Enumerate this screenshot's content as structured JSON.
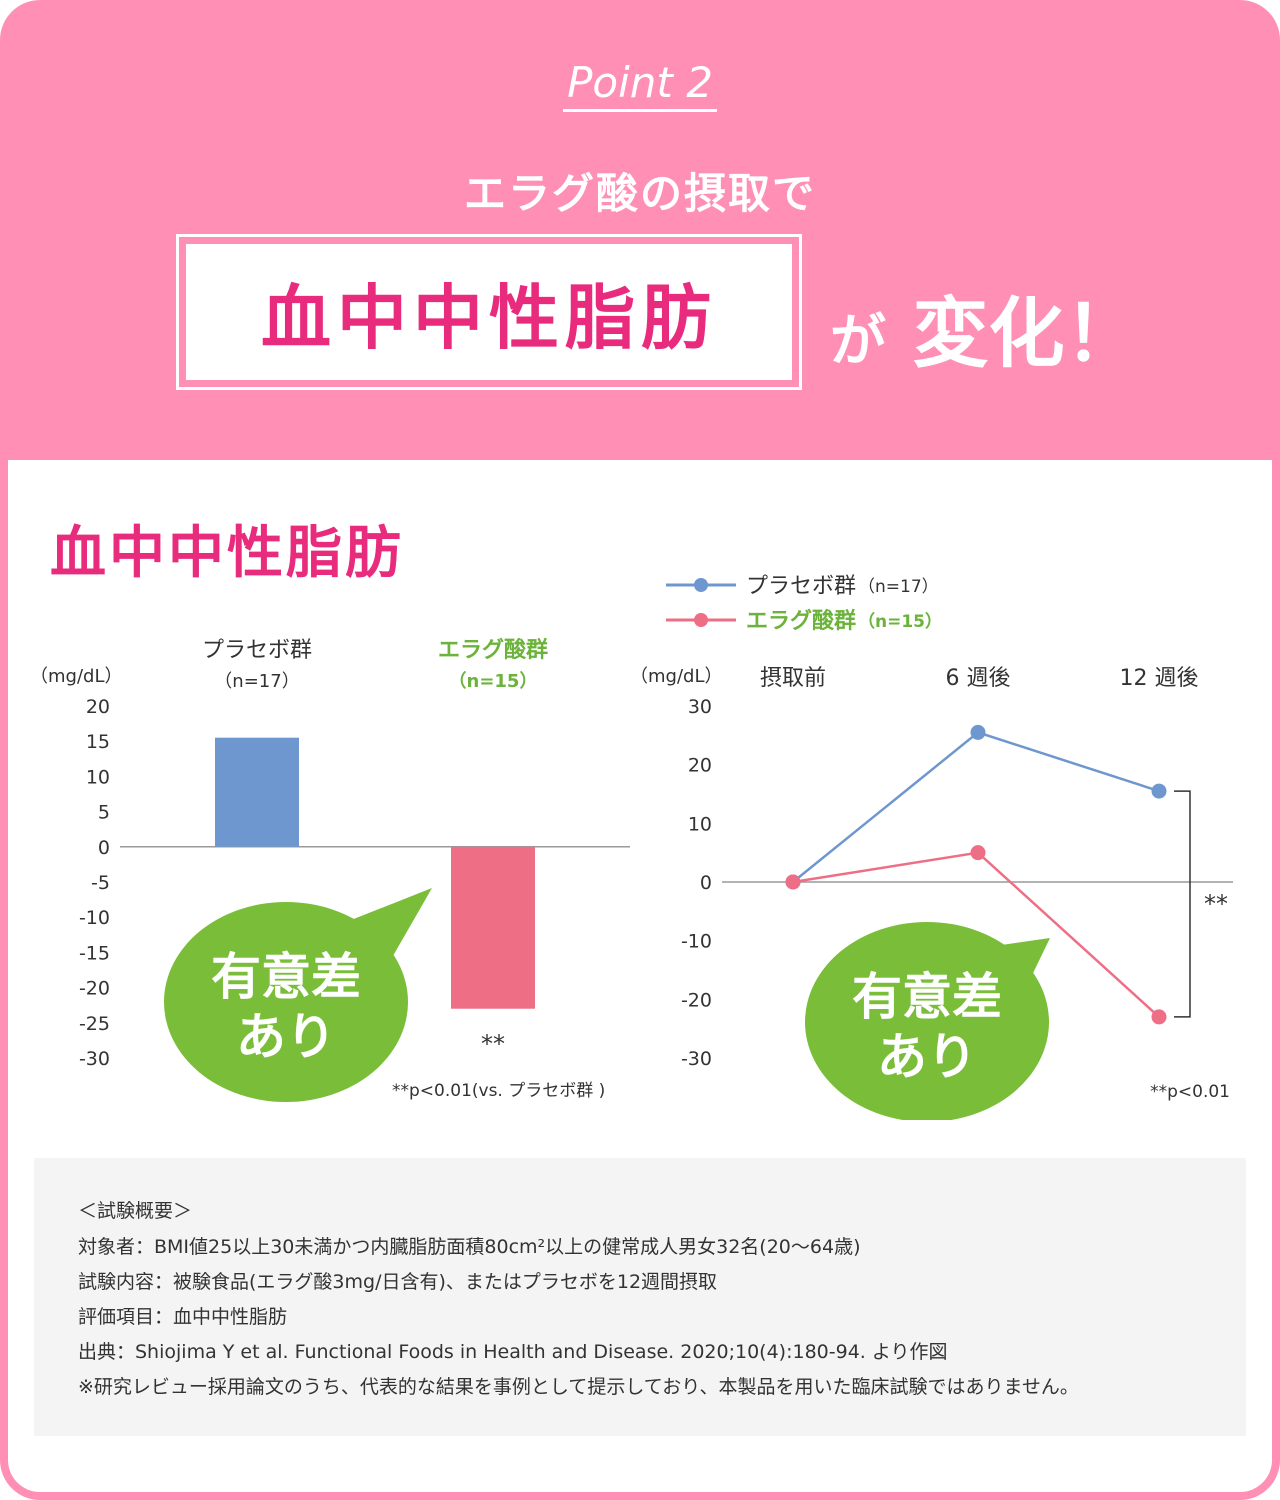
{
  "header": {
    "point_label": "Point 2",
    "subtitle": "エラグ酸の摂取で",
    "highlight": "血中中性脂肪",
    "suffix_ga": "が",
    "suffix_change": "変化！"
  },
  "panel_title": "血中中性脂肪",
  "badge": {
    "line1": "有意差",
    "line2": "あり"
  },
  "colors": {
    "placebo": "#6f97cf",
    "ellagic": "#ee6f85",
    "ellagic_label": "#6bb33a",
    "badge": "#79bd38",
    "pink": "#e82b7c",
    "header_bg": "#ff8fb4"
  },
  "chart_data": [
    {
      "type": "bar",
      "unit": "（mg/dL）",
      "categories": [
        "プラセボ群",
        "エラグ酸群"
      ],
      "category_n": [
        "（n=17）",
        "（n=15）"
      ],
      "values": [
        15.5,
        -23
      ],
      "ylim": [
        -30,
        20
      ],
      "yticks": [
        "20",
        "15",
        "10",
        "5",
        "0",
        "-5",
        "-10",
        "-15",
        "-20",
        "-25",
        "-30"
      ],
      "significance": "**",
      "footnote": "**p<0.01(vs. プラセボ群 )",
      "grid": false
    },
    {
      "type": "line",
      "unit": "（mg/dL）",
      "categories": [
        "摂取前",
        "6 週後",
        "12 週後"
      ],
      "series": [
        {
          "name": "プラセボ群",
          "n": "（n=17）",
          "values": [
            0,
            25.5,
            15.5
          ]
        },
        {
          "name": "エラグ酸群",
          "n": "（n=15）",
          "values": [
            0,
            5,
            -23
          ]
        }
      ],
      "ylim": [
        -30,
        30
      ],
      "yticks": [
        "30",
        "20",
        "10",
        "0",
        "-10",
        "-20",
        "-30"
      ],
      "significance": "**",
      "footnote": "**p<0.01",
      "legend": "top-left",
      "grid": false
    }
  ],
  "notes": {
    "heading": "＜試験概要＞",
    "subjects": "対象者：BMI値25以上30未満かつ内臓脂肪面積80cm²以上の健常成人男女32名(20～64歳)",
    "protocol": "試験内容：被験食品(エラグ酸3mg/日含有)、またはプラセボを12週間摂取",
    "endpoint": "評価項目：血中中性脂肪",
    "source": "出典：Shiojima Y et al. Functional Foods in Health and Disease. 2020;10(4):180-94. より作図",
    "disclaimer": "※研究レビュー採用論文のうち、代表的な結果を事例として提示しており、本製品を用いた臨床試験ではありません。"
  }
}
